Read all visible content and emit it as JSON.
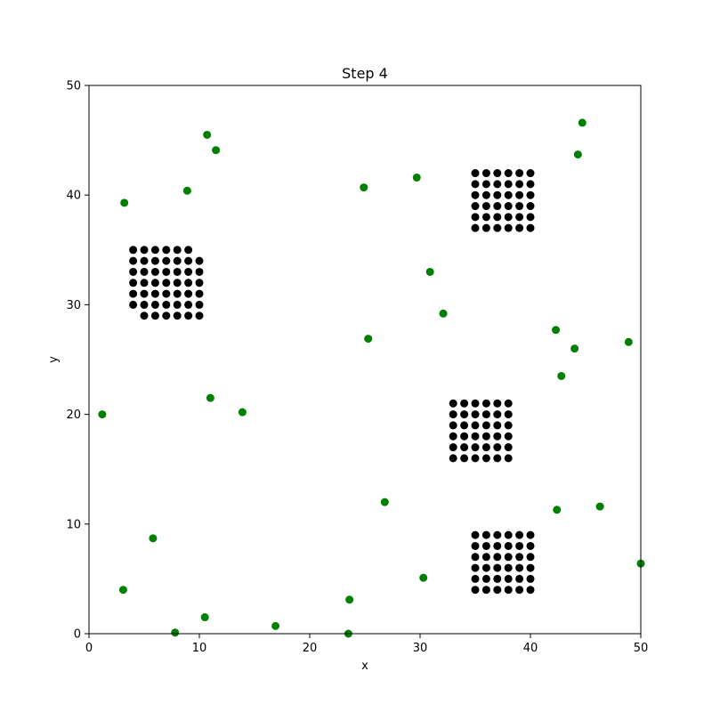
{
  "chart_data": {
    "type": "scatter",
    "title": "Step 4",
    "xlabel": "x",
    "ylabel": "y",
    "xlim": [
      0,
      50
    ],
    "ylim": [
      0,
      50
    ],
    "x_ticks": [
      0,
      10,
      20,
      30,
      40,
      50
    ],
    "y_ticks": [
      0,
      10,
      20,
      30,
      40,
      50
    ],
    "grid": false,
    "series": [
      {
        "color": "#000000",
        "clusters": [
          {
            "x": [
              4,
              5,
              6,
              7,
              8,
              9,
              10
            ],
            "y": [
              29,
              30,
              31,
              32,
              33,
              34,
              35
            ],
            "missing": [
              [
                4,
                29
              ],
              [
                10,
                35
              ]
            ]
          },
          {
            "x": [
              35,
              36,
              37,
              38,
              39,
              40
            ],
            "y": [
              37,
              38,
              39,
              40,
              41,
              42
            ],
            "missing": []
          },
          {
            "x": [
              33,
              34,
              35,
              36,
              37,
              38
            ],
            "y": [
              16,
              17,
              18,
              19,
              20,
              21
            ],
            "missing": []
          },
          {
            "x": [
              35,
              36,
              37,
              38,
              39,
              40
            ],
            "y": [
              4,
              5,
              6,
              7,
              8,
              9
            ],
            "missing": []
          }
        ]
      },
      {
        "color": "#008000",
        "points": [
          [
            10.7,
            45.5
          ],
          [
            11.5,
            44.1
          ],
          [
            8.9,
            40.4
          ],
          [
            3.2,
            39.3
          ],
          [
            24.9,
            40.7
          ],
          [
            29.7,
            41.6
          ],
          [
            44.7,
            46.6
          ],
          [
            44.3,
            43.7
          ],
          [
            30.9,
            33.0
          ],
          [
            32.1,
            29.2
          ],
          [
            25.3,
            26.9
          ],
          [
            42.3,
            27.7
          ],
          [
            44.0,
            26.0
          ],
          [
            48.9,
            26.6
          ],
          [
            42.8,
            23.5
          ],
          [
            11.0,
            21.5
          ],
          [
            13.9,
            20.2
          ],
          [
            1.2,
            20.0
          ],
          [
            26.8,
            12.0
          ],
          [
            42.4,
            11.3
          ],
          [
            46.3,
            11.6
          ],
          [
            5.8,
            8.7
          ],
          [
            3.1,
            4.0
          ],
          [
            10.5,
            1.5
          ],
          [
            7.8,
            0.1
          ],
          [
            16.9,
            0.7
          ],
          [
            23.6,
            3.1
          ],
          [
            23.5,
            0.0
          ],
          [
            30.3,
            5.1
          ],
          [
            50.0,
            6.4
          ]
        ]
      }
    ]
  }
}
